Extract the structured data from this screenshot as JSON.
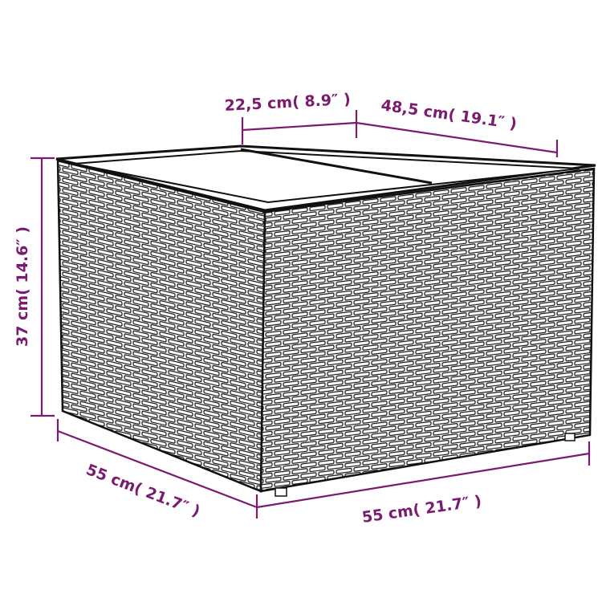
{
  "colors": {
    "dimension": "#7b1b70",
    "outline": "#111111"
  },
  "dimensions": {
    "top_left_width": "22,5 cm( 8.9″ )",
    "top_right_depth": "48,5 cm( 19.1″ )",
    "height": "37 cm( 14.6″ )",
    "bottom_left_depth": "55 cm( 21.7″ )",
    "bottom_right_width": "55 cm( 21.7″ )"
  }
}
